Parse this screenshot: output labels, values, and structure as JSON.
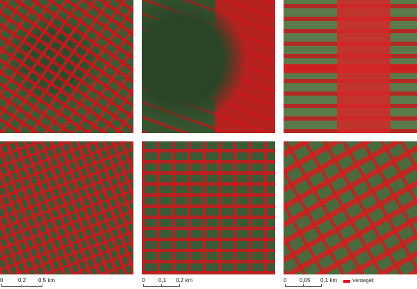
{
  "panels": [
    {
      "name": "map-panel-1"
    },
    {
      "name": "map-panel-2"
    },
    {
      "name": "map-panel-3"
    },
    {
      "name": "map-panel-4"
    },
    {
      "name": "map-panel-5"
    },
    {
      "name": "map-panel-6"
    }
  ],
  "scale_bars": [
    {
      "labels": [
        "0",
        "0,2",
        "0,5 km"
      ]
    },
    {
      "labels": [
        "0",
        "0,1",
        "0,2 km"
      ]
    },
    {
      "labels": [
        "0",
        "0,05",
        "0,1 km"
      ]
    }
  ],
  "legend": {
    "label": "Versiegelt",
    "color": "#e0141e"
  }
}
